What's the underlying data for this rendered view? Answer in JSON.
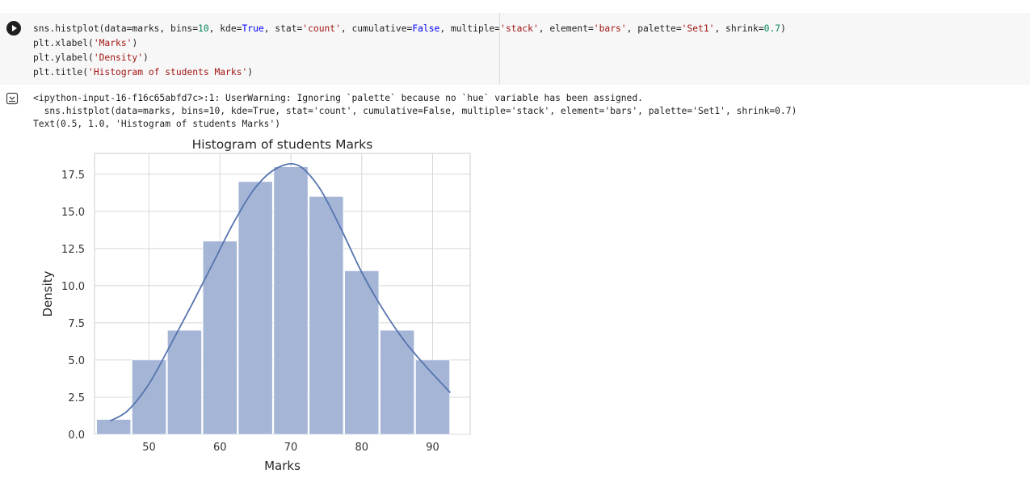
{
  "code_cell": {
    "lines": [
      "sns.histplot(data=marks, bins=10, kde=True, stat='count', cumulative=False, multiple='stack', element='bars', palette='Set1', shrink=0.7)",
      "plt.xlabel('Marks')",
      "plt.ylabel('Density')",
      "plt.title('Histogram of students Marks')"
    ]
  },
  "output": {
    "lines": [
      "<ipython-input-16-f16c65abfd7c>:1: UserWarning: Ignoring `palette` because no `hue` variable has been assigned.",
      "  sns.histplot(data=marks, bins=10, kde=True, stat='count', cumulative=False, multiple='stack', element='bars', palette='Set1', shrink=0.7)",
      "Text(0.5, 1.0, 'Histogram of students Marks')"
    ]
  },
  "icons": {
    "run": "play-icon",
    "output_toggle": "output-collapse-icon"
  },
  "colors": {
    "bar": "#a4b5d6",
    "kde": "#5574ae",
    "grid": "#d8d8d8",
    "axis": "#cccccc"
  },
  "chart_data": {
    "type": "bar",
    "title": "Histogram of students Marks",
    "xlabel": "Marks",
    "ylabel": "Density",
    "bins": [
      45,
      50,
      55,
      60,
      65,
      70,
      75,
      80,
      85,
      90
    ],
    "bin_width": 4.8,
    "values": [
      1,
      5,
      7,
      13,
      17,
      18,
      16,
      11,
      7,
      5
    ],
    "kde": {
      "x": [
        44.5,
        47,
        50,
        53,
        56,
        59,
        62,
        65,
        68,
        71,
        74,
        77,
        80,
        83,
        86,
        89,
        92.5
      ],
      "y": [
        0.9,
        1.6,
        3.4,
        6.0,
        8.7,
        11.5,
        14.3,
        16.6,
        17.9,
        18.1,
        16.6,
        13.9,
        10.9,
        8.4,
        6.3,
        4.6,
        2.8
      ]
    },
    "xticks": [
      50,
      60,
      70,
      80,
      90
    ],
    "yticks": [
      "0.0",
      "2.5",
      "5.0",
      "7.5",
      "10.0",
      "12.5",
      "15.0",
      "17.5"
    ],
    "xlim": [
      42.3,
      95.3
    ],
    "ylim": [
      0,
      18.9
    ],
    "grid": true
  }
}
